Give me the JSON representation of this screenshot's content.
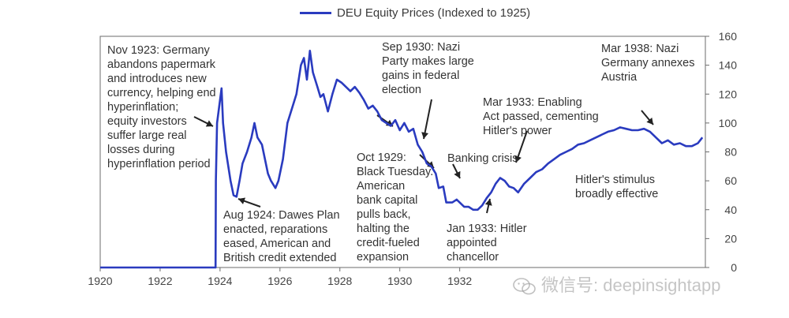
{
  "legend": {
    "label": "DEU Equity Prices (Indexed to 1925)"
  },
  "watermark": {
    "text": "微信号: deepinsightapp",
    "icon": "wechat-icon"
  },
  "colors": {
    "line": "#2a3bbf",
    "axis": "#6b6b6b",
    "text": "#333333"
  },
  "chart_data": {
    "type": "line",
    "title": "",
    "xlabel": "",
    "ylabel": "",
    "x_ticks": [
      1920,
      1922,
      1924,
      1926,
      1928,
      1930,
      1932
    ],
    "y_ticks": [
      0,
      20,
      40,
      60,
      80,
      100,
      120,
      140,
      160
    ],
    "xlim": [
      1920,
      1940.2
    ],
    "ylim": [
      0,
      160
    ],
    "y_axis_side": "right",
    "grid": false,
    "legend_position": "top-center",
    "series": [
      {
        "name": "DEU Equity Prices (Indexed to 1925)",
        "x": [
          1920.0,
          1923.85,
          1923.86,
          1923.9,
          1924.05,
          1924.1,
          1924.2,
          1924.35,
          1924.45,
          1924.55,
          1924.65,
          1924.75,
          1924.9,
          1925.05,
          1925.15,
          1925.25,
          1925.4,
          1925.5,
          1925.6,
          1925.7,
          1925.85,
          1925.95,
          1926.1,
          1926.25,
          1926.4,
          1926.55,
          1926.7,
          1926.8,
          1926.9,
          1927.0,
          1927.1,
          1927.25,
          1927.35,
          1927.45,
          1927.6,
          1927.75,
          1927.9,
          1928.05,
          1928.2,
          1928.35,
          1928.5,
          1928.65,
          1928.8,
          1928.95,
          1929.1,
          1929.25,
          1929.4,
          1929.55,
          1929.7,
          1929.85,
          1930.0,
          1930.15,
          1930.3,
          1930.45,
          1930.6,
          1930.75,
          1930.9,
          1931.05,
          1931.2,
          1931.3,
          1931.45,
          1931.55,
          1931.75,
          1931.9,
          1932.0,
          1932.15,
          1932.3,
          1932.45,
          1932.6,
          1932.75,
          1932.9,
          1933.05,
          1933.2,
          1933.35,
          1933.5,
          1933.65,
          1933.8,
          1933.95,
          1934.15,
          1934.35,
          1934.55,
          1934.75,
          1934.95,
          1935.15,
          1935.35,
          1935.55,
          1935.75,
          1935.95,
          1936.15,
          1936.35,
          1936.55,
          1936.75,
          1936.95,
          1937.15,
          1937.35,
          1937.55,
          1937.75,
          1937.95,
          1938.15,
          1938.35,
          1938.55,
          1938.75,
          1938.95,
          1939.15,
          1939.35,
          1939.55,
          1939.75,
          1939.95,
          1940.1
        ],
        "values": [
          0,
          0,
          60,
          100,
          124,
          100,
          80,
          60,
          50,
          49,
          60,
          72,
          80,
          90,
          100,
          90,
          85,
          75,
          65,
          60,
          55,
          60,
          75,
          100,
          110,
          120,
          140,
          145,
          130,
          150,
          135,
          125,
          118,
          120,
          108,
          120,
          130,
          128,
          125,
          122,
          125,
          121,
          116,
          110,
          112,
          108,
          102,
          100,
          98,
          102,
          95,
          100,
          94,
          96,
          85,
          80,
          72,
          70,
          65,
          55,
          56,
          45,
          45,
          47,
          45,
          42,
          42,
          40,
          40,
          43,
          48,
          52,
          58,
          62,
          60,
          56,
          55,
          52,
          58,
          62,
          66,
          68,
          72,
          75,
          78,
          80,
          82,
          85,
          86,
          88,
          90,
          92,
          94,
          95,
          97,
          96,
          95,
          95,
          96,
          94,
          90,
          86,
          88,
          85,
          86,
          84,
          84,
          86,
          90
        ]
      }
    ],
    "annotations": [
      {
        "text": "Nov 1923: Germany\nabandons papermark\nand introduces new\ncurrency, helping end\nhyperinflation;\nequity investors\nsuffer large real\nlosses during\nhyperinflation period"
      },
      {
        "text": "Aug 1924: Dawes Plan\nenacted, reparations\neased, American and\nBritish credit extended"
      },
      {
        "text": "Oct 1929:\nBlack Tuesday.\nAmerican\nbank capital\npulls back,\nhalting the\ncredit-fueled\nexpansion"
      },
      {
        "text": "Sep 1930: Nazi\nParty makes large\ngains in federal\nelection"
      },
      {
        "text": "Banking crisis"
      },
      {
        "text": "Jan 1933: Hitler\nappointed\nchancellor"
      },
      {
        "text": "Mar 1933: Enabling\nAct passed, cementing\nHitler's power"
      },
      {
        "text": "Hitler's stimulus\nbroadly effective"
      },
      {
        "text": "Mar 1938: Nazi\nGermany annexes\nAustria"
      }
    ]
  }
}
